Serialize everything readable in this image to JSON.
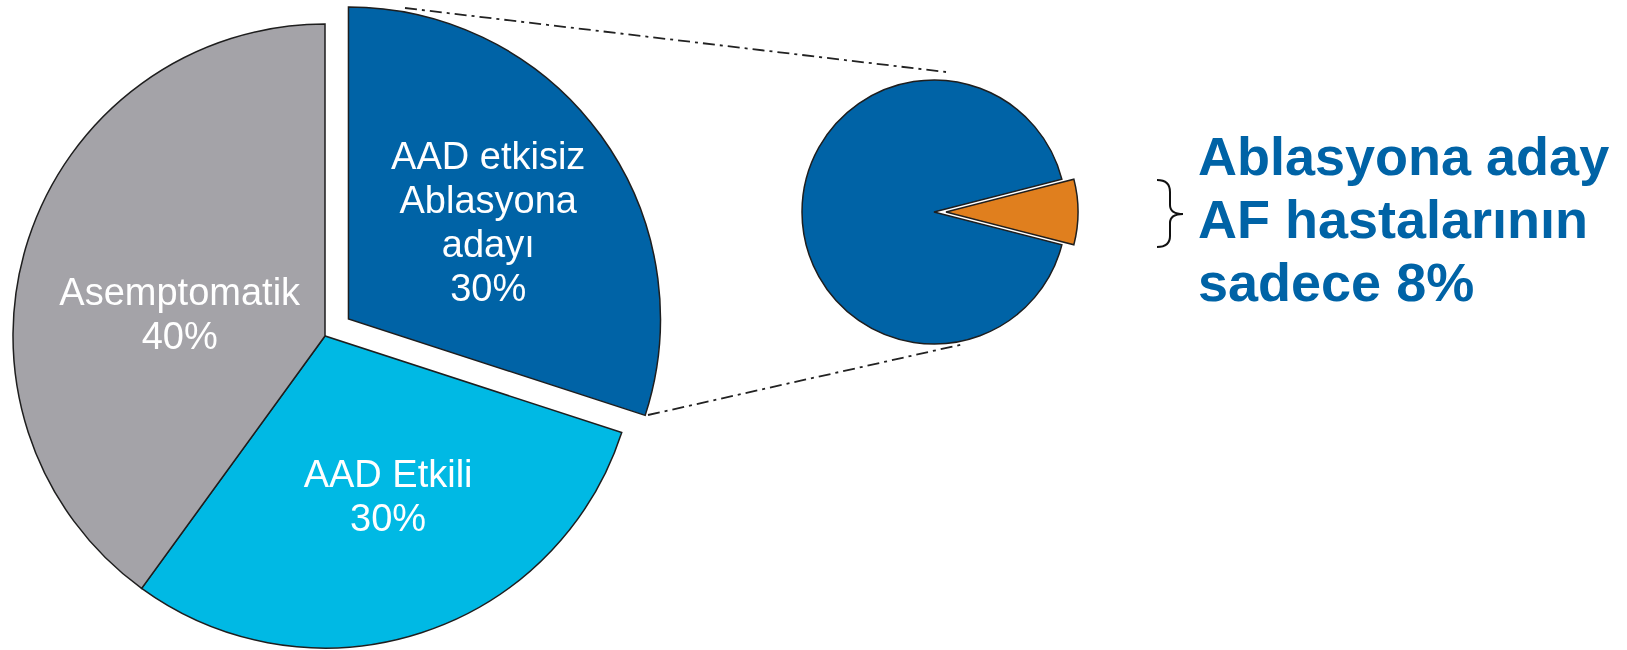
{
  "chart_data": [
    {
      "type": "pie",
      "categories": [
        "AAD etkisiz Ablasyona adayı",
        "AAD Etkili",
        "Asemptomatik"
      ],
      "values": [
        30,
        30,
        40
      ],
      "value_labels": [
        "30%",
        "30%",
        "40%"
      ],
      "colors": [
        "#0063a6",
        "#00b9e4",
        "#a4a3a8"
      ]
    },
    {
      "type": "pie",
      "categories": [
        null,
        null
      ],
      "values": [
        92,
        8
      ],
      "colors": [
        "#0063a6",
        "#e07f1e"
      ],
      "annotations": [
        "Ablasyona aday AF hastalarının sadece 8%"
      ]
    }
  ]
}
